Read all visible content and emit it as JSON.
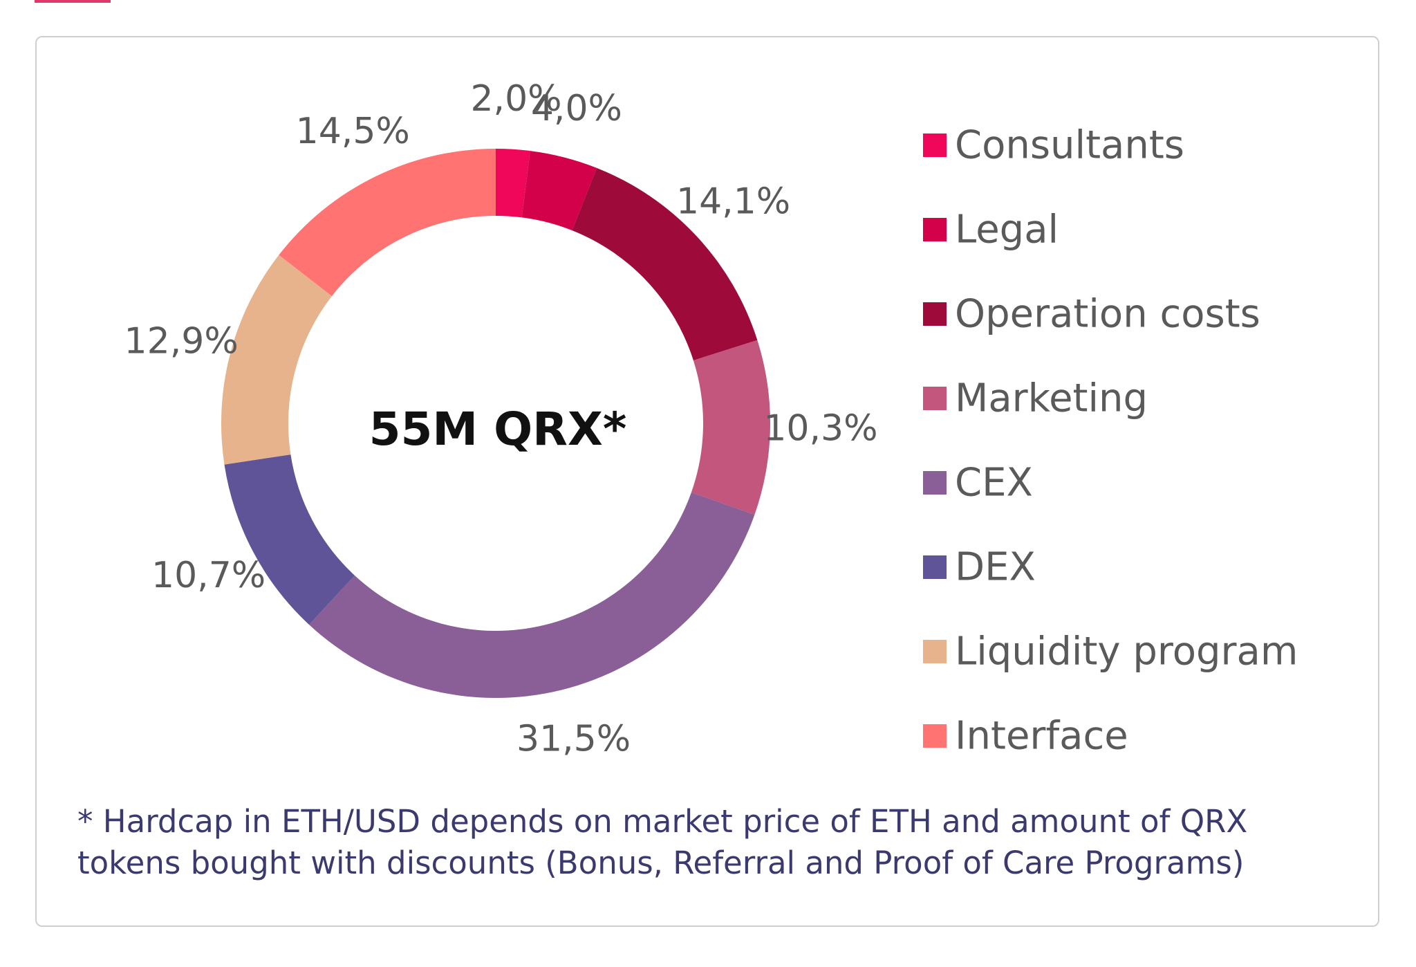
{
  "chart_data": {
    "type": "pie",
    "variant": "donut",
    "center_label": "55M QRX*",
    "slices": [
      {
        "name": "Consultants",
        "value": 2.0,
        "label": "2,0%",
        "color": "#f1075a"
      },
      {
        "name": "Legal",
        "value": 4.0,
        "label": "4,0%",
        "color": "#d3004a"
      },
      {
        "name": "Operation costs",
        "value": 14.1,
        "label": "14,1%",
        "color": "#9e0a3a"
      },
      {
        "name": "Marketing",
        "value": 10.3,
        "label": "10,3%",
        "color": "#c2567c"
      },
      {
        "name": "CEX",
        "value": 31.5,
        "label": "31,5%",
        "color": "#8a5e97"
      },
      {
        "name": "DEX",
        "value": 10.7,
        "label": "10,7%",
        "color": "#5e5497"
      },
      {
        "name": "Liquidity program",
        "value": 12.9,
        "label": "12,9%",
        "color": "#e6b38c"
      },
      {
        "name": "Interface",
        "value": 14.5,
        "label": "14,5%",
        "color": "#ff7373"
      }
    ],
    "legend_position": "right"
  },
  "footnote": {
    "line1": "* Hardcap in ETH/USD depends on market price of ETH and amount of QRX",
    "line2": "tokens bought with discounts (Bonus, Referral and Proof of Care Programs)"
  }
}
